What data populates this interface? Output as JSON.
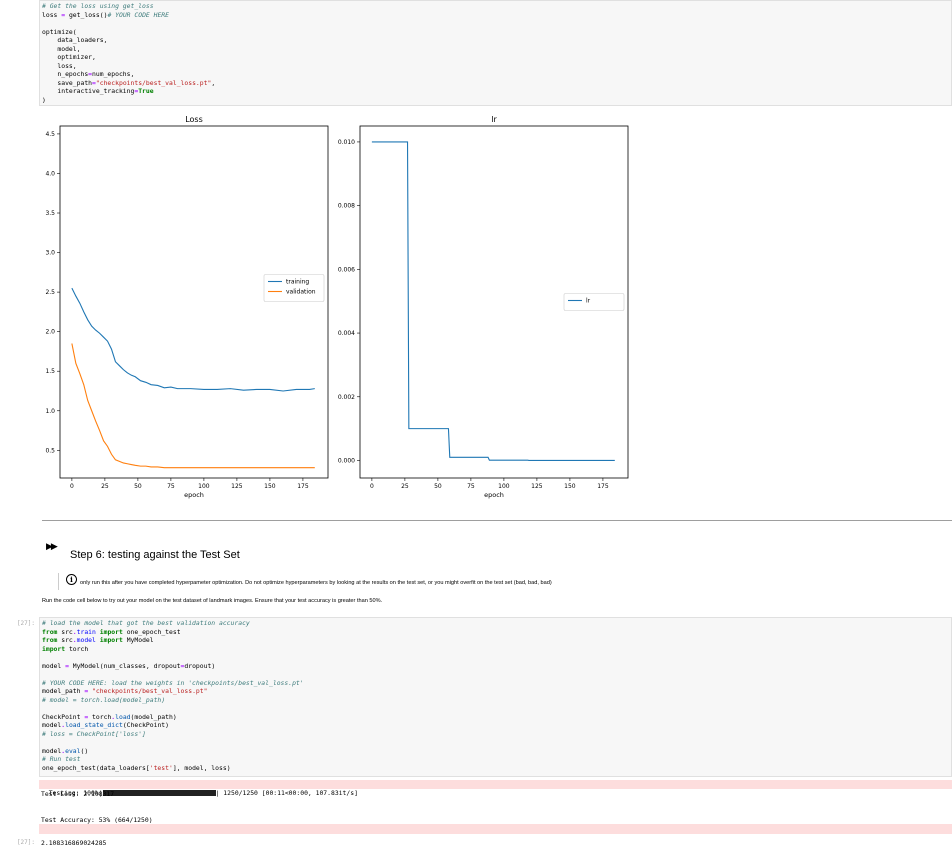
{
  "cell_top": {
    "lines": [
      [
        {
          "t": "# Get the loss using get_loss",
          "c": "cm"
        }
      ],
      [
        {
          "t": "loss "
        },
        {
          "t": "=",
          "c": "op"
        },
        {
          "t": " get_loss()"
        },
        {
          "t": "# YOUR CODE HERE",
          "c": "cm"
        }
      ],
      [
        {
          "t": ""
        }
      ],
      [
        {
          "t": "optimize("
        }
      ],
      [
        {
          "t": "    data_loaders,"
        }
      ],
      [
        {
          "t": "    model,"
        }
      ],
      [
        {
          "t": "    optimizer,"
        }
      ],
      [
        {
          "t": "    loss,"
        }
      ],
      [
        {
          "t": "    n_epochs"
        },
        {
          "t": "=",
          "c": "op"
        },
        {
          "t": "num_epochs,"
        }
      ],
      [
        {
          "t": "    save_path"
        },
        {
          "t": "=",
          "c": "op"
        },
        {
          "t": "\"checkpoints/best_val_loss.pt\"",
          "c": "st"
        },
        {
          "t": ","
        }
      ],
      [
        {
          "t": "    interactive_tracking"
        },
        {
          "t": "=",
          "c": "op"
        },
        {
          "t": "True",
          "c": "cn"
        }
      ],
      [
        {
          "t": ")"
        }
      ]
    ]
  },
  "chart_data": [
    {
      "type": "line",
      "title": "Loss",
      "xlabel": "epoch",
      "ylabel": "",
      "xlim": [
        -9,
        194
      ],
      "ylim": [
        0.15,
        4.6
      ],
      "xticks": [
        0,
        25,
        50,
        75,
        100,
        125,
        150,
        175
      ],
      "yticks": [
        0.5,
        1.0,
        1.5,
        2.0,
        2.5,
        3.0,
        3.5,
        4.0,
        4.5
      ],
      "ytick_labels": [
        "0.5",
        "1.0",
        "1.5",
        "2.0",
        "2.5",
        "3.0",
        "3.5",
        "4.0",
        "4.5"
      ],
      "legend": "center-right",
      "grid": false,
      "series": [
        {
          "name": "training",
          "color": "#1f77b4",
          "x": [
            0,
            3,
            6,
            9,
            12,
            15,
            18,
            21,
            24,
            27,
            30,
            33,
            36,
            39,
            42,
            45,
            48,
            52,
            56,
            60,
            65,
            70,
            75,
            80,
            90,
            100,
            110,
            120,
            130,
            140,
            150,
            160,
            170,
            180,
            184
          ],
          "y": [
            2.55,
            2.45,
            2.36,
            2.25,
            2.15,
            2.07,
            2.02,
            1.98,
            1.93,
            1.88,
            1.78,
            1.62,
            1.57,
            1.52,
            1.48,
            1.45,
            1.43,
            1.38,
            1.36,
            1.33,
            1.32,
            1.29,
            1.3,
            1.28,
            1.28,
            1.27,
            1.27,
            1.28,
            1.26,
            1.27,
            1.27,
            1.25,
            1.27,
            1.27,
            1.28
          ]
        },
        {
          "name": "validation",
          "color": "#ff7f0e",
          "x": [
            0,
            3,
            6,
            9,
            12,
            15,
            18,
            21,
            24,
            27,
            30,
            33,
            36,
            39,
            42,
            45,
            48,
            52,
            56,
            60,
            65,
            70,
            75,
            80,
            90,
            100,
            110,
            120,
            130,
            140,
            150,
            160,
            170,
            180,
            184
          ],
          "y": [
            1.85,
            1.6,
            1.47,
            1.33,
            1.13,
            1.0,
            0.87,
            0.75,
            0.62,
            0.55,
            0.45,
            0.38,
            0.36,
            0.34,
            0.33,
            0.32,
            0.31,
            0.3,
            0.3,
            0.29,
            0.29,
            0.28,
            0.28,
            0.28,
            0.28,
            0.28,
            0.28,
            0.28,
            0.28,
            0.28,
            0.28,
            0.28,
            0.28,
            0.28,
            0.28
          ]
        }
      ]
    },
    {
      "type": "line",
      "title": "lr",
      "xlabel": "epoch",
      "ylabel": "",
      "xlim": [
        -9,
        194
      ],
      "ylim": [
        -0.00055,
        0.0105
      ],
      "xticks": [
        0,
        25,
        50,
        75,
        100,
        125,
        150,
        175
      ],
      "yticks": [
        0,
        0.002,
        0.004,
        0.006,
        0.008,
        0.01
      ],
      "ytick_labels": [
        "0.000",
        "0.002",
        "0.004",
        "0.006",
        "0.008",
        "0.010"
      ],
      "legend": "center-right",
      "grid": false,
      "series": [
        {
          "name": "lr",
          "color": "#1f77b4",
          "x": [
            0,
            27,
            28,
            29,
            58,
            59,
            60,
            88,
            89,
            90,
            118,
            119,
            184
          ],
          "y": [
            0.01,
            0.01,
            0.001,
            0.001,
            0.001,
            0.0001,
            0.0001,
            0.0001,
            1e-05,
            1e-05,
            1e-05,
            1e-06,
            1e-06
          ]
        }
      ]
    }
  ],
  "heading": {
    "icon": "▶▶",
    "text": "Step 6: testing against the Test Set"
  },
  "note": {
    "text": "only run this after you have completed hyperpameter optimization. Do not optimize hyperparameters by looking at the results on the test set, or you might overfit on the test set (bad, bad, bad)"
  },
  "paragraph": {
    "text": "Run the code cell below to try out your model on the test dataset of landmark images. Ensure that your test accuracy is greater than 50%."
  },
  "cell_test": {
    "prompt": "[27]:",
    "lines": [
      [
        {
          "t": "# load the model that got the best validation accuracy",
          "c": "cm"
        }
      ],
      [
        {
          "t": "from",
          "c": "kw"
        },
        {
          "t": " src"
        },
        {
          "t": ".",
          "c": "op"
        },
        {
          "t": "train",
          "c": "nm"
        },
        {
          "t": " "
        },
        {
          "t": "import",
          "c": "kw"
        },
        {
          "t": " one_epoch_test"
        }
      ],
      [
        {
          "t": "from",
          "c": "kw"
        },
        {
          "t": " src"
        },
        {
          "t": ".",
          "c": "op"
        },
        {
          "t": "model",
          "c": "nm"
        },
        {
          "t": " "
        },
        {
          "t": "import",
          "c": "kw"
        },
        {
          "t": " MyModel"
        }
      ],
      [
        {
          "t": "import",
          "c": "kw"
        },
        {
          "t": " torch"
        }
      ],
      [
        {
          "t": ""
        }
      ],
      [
        {
          "t": "model "
        },
        {
          "t": "=",
          "c": "op"
        },
        {
          "t": " MyModel(num_classes, dropout"
        },
        {
          "t": "=",
          "c": "op"
        },
        {
          "t": "dropout)"
        }
      ],
      [
        {
          "t": ""
        }
      ],
      [
        {
          "t": "# YOUR CODE HERE: load the weights in 'checkpoints/best_val_loss.pt'",
          "c": "cm"
        }
      ],
      [
        {
          "t": "model_path "
        },
        {
          "t": "=",
          "c": "op"
        },
        {
          "t": " "
        },
        {
          "t": "\"checkpoints/best_val_loss.pt\"",
          "c": "st"
        }
      ],
      [
        {
          "t": "# model = torch.load(model_path)",
          "c": "cm"
        }
      ],
      [
        {
          "t": ""
        }
      ],
      [
        {
          "t": "CheckPoint "
        },
        {
          "t": "=",
          "c": "op"
        },
        {
          "t": " torch"
        },
        {
          "t": ".",
          "c": "op"
        },
        {
          "t": "load",
          "c": "fn"
        },
        {
          "t": "(model_path)"
        }
      ],
      [
        {
          "t": "model"
        },
        {
          "t": ".",
          "c": "op"
        },
        {
          "t": "load_state_dict",
          "c": "fn"
        },
        {
          "t": "(CheckPoint)"
        }
      ],
      [
        {
          "t": "# loss = CheckPoint['loss']",
          "c": "cm"
        }
      ],
      [
        {
          "t": ""
        }
      ],
      [
        {
          "t": "model"
        },
        {
          "t": ".",
          "c": "op"
        },
        {
          "t": "eval",
          "c": "fn"
        },
        {
          "t": "()"
        }
      ],
      [
        {
          "t": "# Run test",
          "c": "cm"
        }
      ],
      [
        {
          "t": "one_epoch_test(data_loaders["
        },
        {
          "t": "'test'",
          "c": "st"
        },
        {
          "t": "], model, loss)"
        }
      ]
    ]
  },
  "output": {
    "progress_label": "Testing: 100%|",
    "progress_fraction": 1.0,
    "progress_tail": "| 1250/1250 [00:11<00:00, 107.83it/s]",
    "test_loss": "Test Loss: 2.108317",
    "test_accuracy": "Test Accuracy: 53% (664/1250)"
  },
  "result": {
    "prompt": "[27]:",
    "value": "2.108316869024285"
  }
}
